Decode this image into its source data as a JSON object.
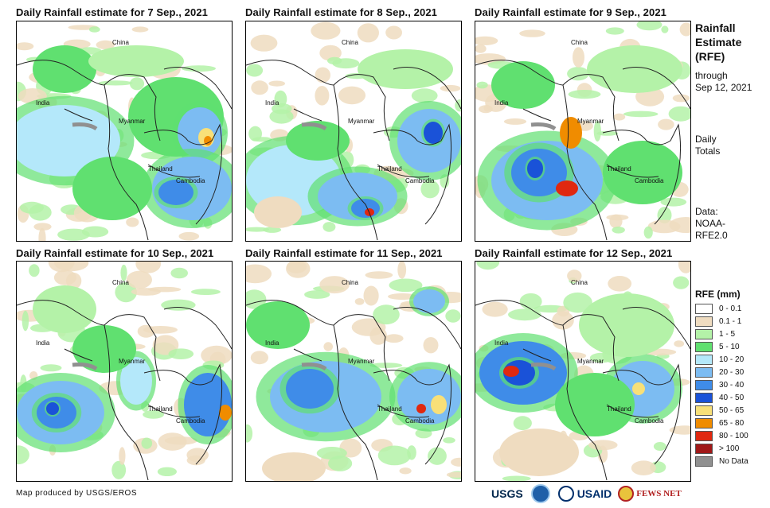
{
  "panels": [
    {
      "title": "Daily Rainfall estimate for 7  Sep., 2021",
      "labels": {
        "china": "China",
        "india": "India",
        "myanmar": "Myanmar",
        "thailand": "Thailand",
        "cambodia": "Cambodia"
      }
    },
    {
      "title": "Daily Rainfall estimate for 8  Sep., 2021",
      "labels": {
        "china": "China",
        "india": "India",
        "myanmar": "Myanmar",
        "thailand": "Thailand",
        "cambodia": "Cambodia"
      }
    },
    {
      "title": "Daily Rainfall estimate for 9  Sep., 2021",
      "labels": {
        "china": "China",
        "india": "India",
        "myanmar": "Myanmar",
        "thailand": "Thailand",
        "cambodia": "Cambodia"
      }
    },
    {
      "title": "Daily Rainfall estimate for 10  Sep., 2021",
      "labels": {
        "china": "China",
        "india": "India",
        "myanmar": "Myanmar",
        "thailand": "Thailand",
        "cambodia": "Cambodia"
      }
    },
    {
      "title": "Daily Rainfall estimate for 11  Sep., 2021",
      "labels": {
        "china": "China",
        "india": "India",
        "myanmar": "Myanmar",
        "thailand": "Thailand",
        "cambodia": "Cambodia"
      }
    },
    {
      "title": "Daily Rainfall estimate for 12  Sep., 2021",
      "labels": {
        "china": "China",
        "india": "India",
        "myanmar": "Myanmar",
        "thailand": "Thailand",
        "cambodia": "Cambodia"
      }
    }
  ],
  "sidebar": {
    "heading_lines": [
      "Rainfall",
      "Estimate",
      "(RFE)"
    ],
    "through_lines": [
      "through",
      "Sep 12, 2021"
    ],
    "totals_lines": [
      "Daily",
      "Totals"
    ],
    "data_lines": [
      "Data:",
      "NOAA-",
      "RFE2.0"
    ]
  },
  "legend": {
    "title": "RFE (mm)",
    "items": [
      {
        "label": "0 - 0.1",
        "color": "#ffffff"
      },
      {
        "label": "0.1 - 1",
        "color": "#efdcc0"
      },
      {
        "label": "1 - 5",
        "color": "#b4f2a8"
      },
      {
        "label": "5 - 10",
        "color": "#60e070"
      },
      {
        "label": "10 - 20",
        "color": "#b4e8fa"
      },
      {
        "label": "20 - 30",
        "color": "#7cbcf2"
      },
      {
        "label": "30 - 40",
        "color": "#3f8ce8"
      },
      {
        "label": "40 - 50",
        "color": "#1a52d8"
      },
      {
        "label": "50 - 65",
        "color": "#f8e078"
      },
      {
        "label": "65 - 80",
        "color": "#f08c00"
      },
      {
        "label": "80 - 100",
        "color": "#e02810"
      },
      {
        "label": "> 100",
        "color": "#a01818"
      },
      {
        "label": "No Data",
        "color": "#909090"
      }
    ]
  },
  "credit": "Map produced by USGS/EROS",
  "logos": [
    {
      "name": "USGS",
      "color": "#00264c"
    },
    {
      "name": "NOAA",
      "color": "#1f5fa8"
    },
    {
      "name": "USAID",
      "color": "#002f6c"
    },
    {
      "name": "FEWS NET",
      "color": "#b22222"
    }
  ]
}
